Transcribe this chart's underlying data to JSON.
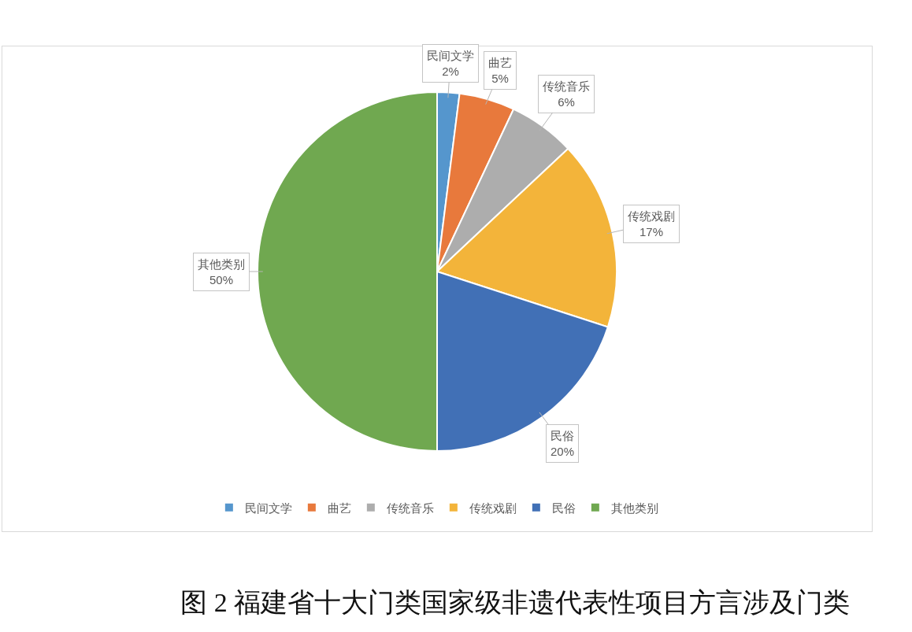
{
  "chart_data": {
    "type": "pie",
    "title": "图 2 福建省十大门类国家级非遗代表性项目方言涉及门类",
    "categories": [
      "民间文学",
      "曲艺",
      "传统音乐",
      "传统戏剧",
      "民俗",
      "其他类别"
    ],
    "values": [
      2,
      5,
      6,
      17,
      20,
      50
    ],
    "value_labels": [
      "2%",
      "5%",
      "6%",
      "17%",
      "20%",
      "50%"
    ],
    "colors": [
      "#5596cd",
      "#e8793c",
      "#adadad",
      "#f3b43a",
      "#4170b6",
      "#70a850"
    ],
    "legend": "bottom"
  }
}
